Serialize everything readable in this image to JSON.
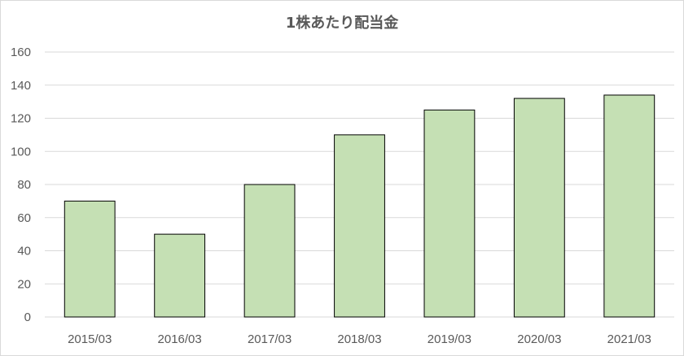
{
  "chart_data": {
    "type": "bar",
    "title": "1株あたり配当金",
    "categories": [
      "2015/03",
      "2016/03",
      "2017/03",
      "2018/03",
      "2019/03",
      "2020/03",
      "2021/03"
    ],
    "values": [
      70,
      50,
      80,
      110,
      125,
      132,
      134
    ],
    "xlabel": "",
    "ylabel": "",
    "ylim": [
      0,
      160
    ],
    "yticks": [
      0,
      20,
      40,
      60,
      80,
      100,
      120,
      140,
      160
    ],
    "grid": true,
    "legend": "none",
    "colors": {
      "bar_fill": "#c5e0b4",
      "bar_stroke": "#000000",
      "grid": "#d9d9d9",
      "text": "#595959"
    }
  }
}
